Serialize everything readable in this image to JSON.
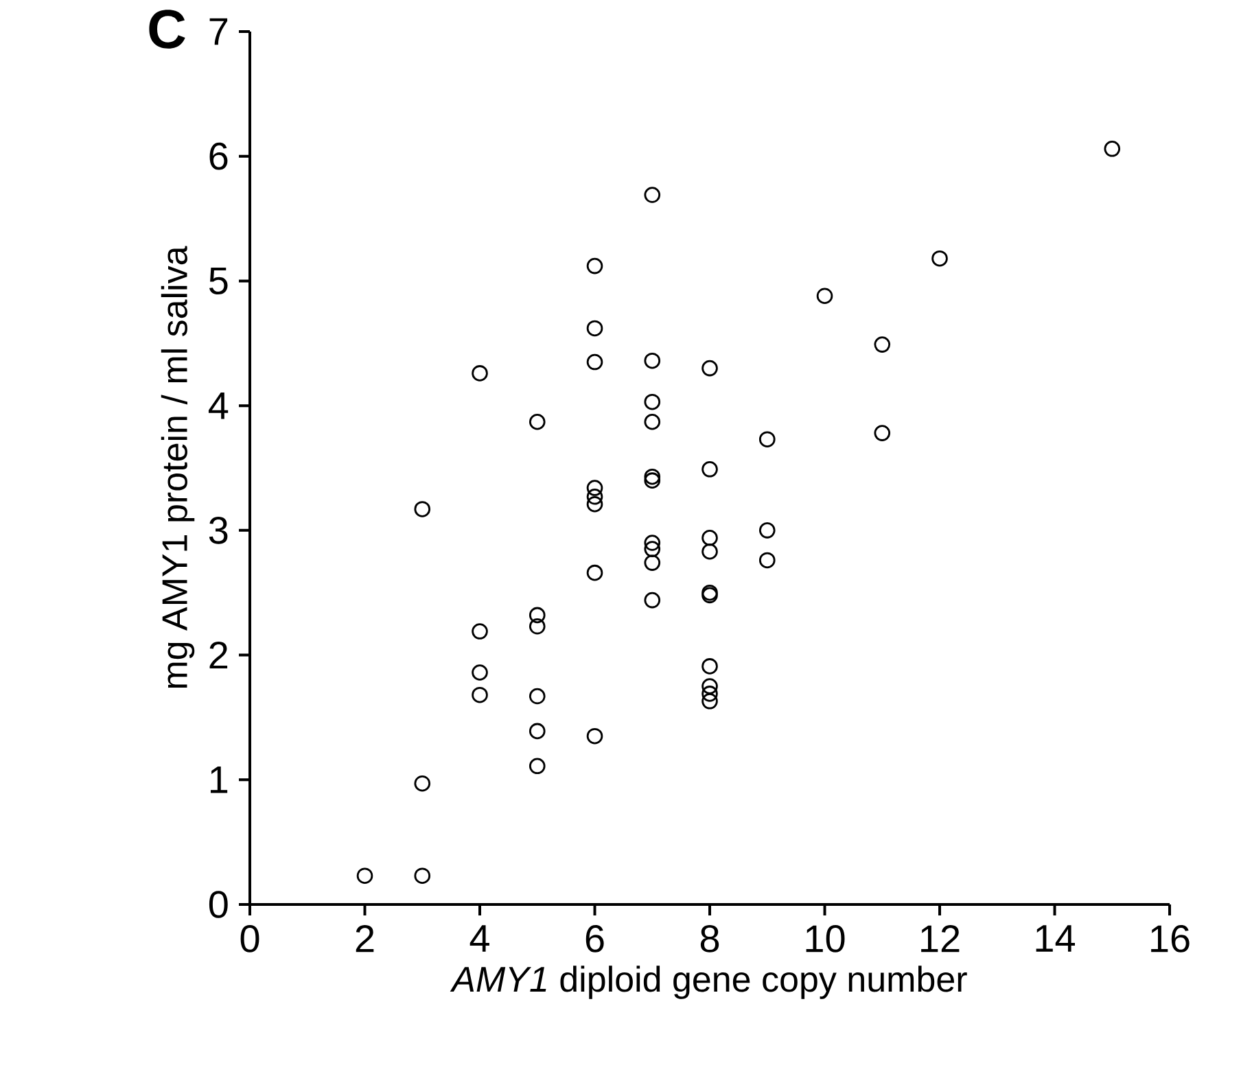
{
  "chart_data": {
    "type": "scatter",
    "xlabel": "*AMY1* diploid gene copy number",
    "ylabel": "mg AMY1 protein / ml saliva",
    "annotations": [
      "C"
    ],
    "x": [
      2,
      3,
      3,
      3,
      4,
      4,
      4,
      4,
      5,
      5,
      5,
      5,
      5,
      5,
      6,
      6,
      6,
      6,
      6,
      6,
      6,
      6,
      7,
      7,
      7,
      7,
      7,
      7,
      7,
      7,
      7,
      7,
      8,
      8,
      8,
      8,
      8,
      8,
      8,
      8,
      8,
      8,
      9,
      9,
      9,
      10,
      11,
      11,
      12,
      15
    ],
    "values": [
      0.23,
      0.23,
      0.97,
      3.17,
      4.26,
      2.19,
      1.86,
      1.68,
      3.87,
      2.32,
      2.23,
      1.67,
      1.39,
      1.11,
      5.12,
      4.62,
      4.35,
      3.34,
      3.27,
      3.21,
      2.66,
      1.35,
      5.69,
      4.36,
      4.03,
      3.87,
      3.43,
      3.4,
      2.9,
      2.85,
      2.74,
      2.44,
      4.3,
      3.49,
      2.94,
      2.83,
      2.5,
      2.48,
      1.91,
      1.75,
      1.69,
      1.63,
      3.73,
      3.0,
      2.76,
      4.88,
      4.49,
      3.78,
      5.18,
      6.06
    ],
    "color": "#000000",
    "marker": "circle",
    "xlim": [
      0,
      16
    ],
    "xticks": [
      0,
      2,
      4,
      6,
      8,
      10,
      12,
      14,
      16
    ],
    "ylim": [
      0,
      7
    ],
    "yticks": [
      0,
      1,
      2,
      3,
      4,
      5,
      6,
      7
    ]
  }
}
